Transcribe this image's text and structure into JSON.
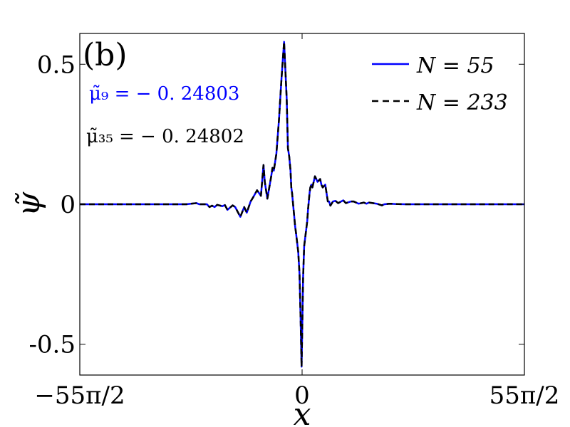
{
  "chart_data": {
    "type": "line",
    "panel_label": "(b)",
    "xlabel": "x",
    "ylabel": "ψ̃",
    "x_domain": [
      -86.39,
      86.39
    ],
    "ylim": [
      -0.61,
      0.61
    ],
    "x_ticks": [
      {
        "value": -86.39,
        "label": "−55π/2"
      },
      {
        "value": 0,
        "label": "0"
      },
      {
        "value": 86.39,
        "label": "55π/2"
      }
    ],
    "y_ticks": [
      {
        "value": 0.5,
        "label": "0.5"
      },
      {
        "value": 0,
        "label": "0"
      },
      {
        "value": -0.5,
        "label": "-0.5"
      }
    ],
    "annotations": [
      {
        "text": "μ̃₉ = − 0. 24803",
        "color": "#0000ff"
      },
      {
        "text": "μ̃₃₅ = − 0. 24802",
        "color": "#000000"
      }
    ],
    "legend_placement": "top-right",
    "series": [
      {
        "name": "N = 55",
        "color": "#0000ff",
        "style": "solid",
        "x": [
          -86.39,
          -45,
          -41,
          -40,
          -37,
          -36,
          -35,
          -34,
          -33,
          -31,
          -30,
          -29,
          -28,
          -27,
          -26,
          -24,
          -22.5,
          -21.5,
          -20,
          -19,
          -17.5,
          -16,
          -15,
          -14.5,
          -13.5,
          -12,
          -11.5,
          -11,
          -10,
          -9,
          -8,
          -7,
          -6,
          -5.5,
          -5,
          -4.5,
          -4.2,
          -3.9,
          -3.6,
          -3.3,
          -3,
          -2.7,
          -2.4,
          -1.5,
          -1,
          -0.6,
          -0.2,
          0.4,
          0.8,
          1.2,
          1.6,
          2,
          2.3,
          2.6,
          2.9,
          3.2,
          3.6,
          4,
          4.5,
          5,
          6,
          7,
          7.5,
          8,
          9,
          10,
          10.5,
          11,
          12,
          13,
          14,
          16,
          17,
          19,
          20,
          22,
          24,
          25,
          26,
          29,
          31,
          32,
          34,
          36,
          40,
          45,
          86.39
        ],
        "y": [
          0,
          0,
          0.004,
          0,
          0,
          -0.01,
          -0.005,
          -0.01,
          -0.002,
          -0.007,
          -0.003,
          -0.02,
          -0.012,
          -0.004,
          -0.01,
          -0.045,
          -0.01,
          -0.03,
          0.01,
          0.025,
          0.05,
          0.03,
          0.14,
          0.08,
          0.02,
          0.1,
          0.13,
          0.12,
          0.18,
          0.3,
          0.45,
          0.58,
          0.38,
          0.2,
          0.17,
          0.12,
          0.06,
          0.04,
          0.01,
          -0.02,
          -0.05,
          -0.08,
          -0.1,
          -0.17,
          -0.25,
          -0.4,
          -0.58,
          -0.26,
          -0.15,
          -0.12,
          -0.09,
          -0.06,
          -0.02,
          0.01,
          0.04,
          0.06,
          0.07,
          0.06,
          0.08,
          0.1,
          0.08,
          0.09,
          0.07,
          0.06,
          0.07,
          0.01,
          0.01,
          -0.005,
          0.01,
          0.012,
          0.004,
          0.014,
          0.004,
          0.01,
          0.01,
          0.002,
          0.006,
          0.002,
          0.006,
          0.002,
          -0.004,
          0,
          0.002,
          0.001,
          0,
          0,
          0
        ]
      },
      {
        "name": "N = 233",
        "color": "#000000",
        "style": "dashed",
        "x": [
          -86.39,
          -45,
          -41,
          -40,
          -37,
          -36,
          -35,
          -34,
          -33,
          -31,
          -30,
          -29,
          -28,
          -27,
          -26,
          -24,
          -22.5,
          -21.5,
          -20,
          -19,
          -17.5,
          -16,
          -15,
          -14.5,
          -13.5,
          -12,
          -11.5,
          -11,
          -10,
          -9,
          -8,
          -7,
          -6,
          -5.5,
          -5,
          -4.5,
          -4.2,
          -3.9,
          -3.6,
          -3.3,
          -3,
          -2.7,
          -2.4,
          -1.5,
          -1,
          -0.6,
          -0.2,
          0.4,
          0.8,
          1.2,
          1.6,
          2,
          2.3,
          2.6,
          2.9,
          3.2,
          3.6,
          4,
          4.5,
          5,
          6,
          7,
          7.5,
          8,
          9,
          10,
          10.5,
          11,
          12,
          13,
          14,
          16,
          17,
          19,
          20,
          22,
          24,
          25,
          26,
          29,
          31,
          32,
          34,
          36,
          40,
          45,
          86.39
        ],
        "y": [
          0,
          0,
          0.004,
          0,
          0,
          -0.01,
          -0.005,
          -0.01,
          -0.002,
          -0.007,
          -0.003,
          -0.02,
          -0.012,
          -0.004,
          -0.01,
          -0.045,
          -0.01,
          -0.03,
          0.01,
          0.025,
          0.05,
          0.03,
          0.14,
          0.08,
          0.02,
          0.1,
          0.13,
          0.12,
          0.18,
          0.3,
          0.45,
          0.58,
          0.38,
          0.2,
          0.17,
          0.12,
          0.06,
          0.04,
          0.01,
          -0.02,
          -0.05,
          -0.08,
          -0.1,
          -0.17,
          -0.25,
          -0.4,
          -0.58,
          -0.26,
          -0.15,
          -0.12,
          -0.09,
          -0.06,
          -0.02,
          0.01,
          0.04,
          0.06,
          0.07,
          0.06,
          0.08,
          0.1,
          0.08,
          0.09,
          0.07,
          0.06,
          0.07,
          0.01,
          0.01,
          -0.005,
          0.01,
          0.012,
          0.004,
          0.014,
          0.004,
          0.01,
          0.01,
          0.002,
          0.006,
          0.002,
          0.006,
          0.002,
          -0.004,
          0,
          0.002,
          0.001,
          0,
          0,
          0
        ]
      }
    ]
  }
}
